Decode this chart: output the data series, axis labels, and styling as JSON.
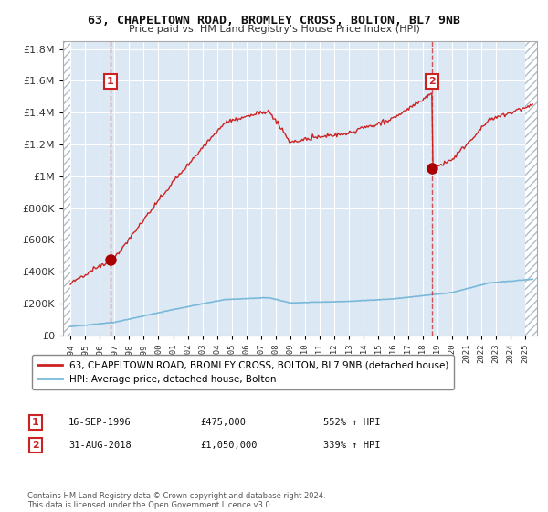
{
  "title1": "63, CHAPELTOWN ROAD, BROMLEY CROSS, BOLTON, BL7 9NB",
  "title2": "Price paid vs. HM Land Registry's House Price Index (HPI)",
  "sale1_date": "16-SEP-1996",
  "sale1_price": 475000,
  "sale1_year": 1996.71,
  "sale2_date": "31-AUG-2018",
  "sale2_price": 1050000,
  "sale2_year": 2018.66,
  "hpi_line_color": "#7ab8d9",
  "price_line_color": "#cc2222",
  "dot_color": "#aa0000",
  "vline_color": "#cc2222",
  "background_color": "#dce9f5",
  "grid_color": "#ffffff",
  "legend_label1": "63, CHAPELTOWN ROAD, BROMLEY CROSS, BOLTON, BL7 9NB (detached house)",
  "legend_label2": "HPI: Average price, detached house, Bolton",
  "anno1_date": "16-SEP-1996",
  "anno1_price": "£475,000",
  "anno1_hpi": "552% ↑ HPI",
  "anno2_date": "31-AUG-2018",
  "anno2_price": "£1,050,000",
  "anno2_hpi": "339% ↑ HPI",
  "footer": "Contains HM Land Registry data © Crown copyright and database right 2024.\nThis data is licensed under the Open Government Licence v3.0.",
  "ylim": [
    0,
    1850000
  ],
  "xlim_start": 1993.5,
  "xlim_end": 2025.8,
  "hatch_left_end": 1994.0,
  "hatch_right_start": 2025.0
}
